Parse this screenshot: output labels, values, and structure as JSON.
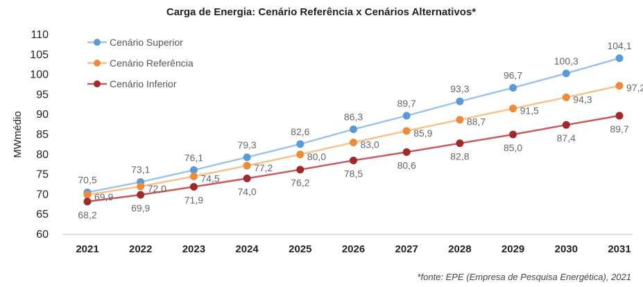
{
  "chart_data": {
    "type": "line",
    "title": "Carga de Energia: Cenário Referência x Cenários Alternativos*",
    "ylabel": "MWmédio",
    "xlabel": "",
    "categories": [
      "2021",
      "2022",
      "2023",
      "2024",
      "2025",
      "2026",
      "2027",
      "2028",
      "2029",
      "2030",
      "2031"
    ],
    "ylim": [
      60,
      110
    ],
    "yticks": [
      60,
      65,
      70,
      75,
      80,
      85,
      90,
      95,
      100,
      105,
      110
    ],
    "grid": false,
    "legend_position": "top-left",
    "series": [
      {
        "name": "Cenário Superior",
        "color": "#9fc3e6",
        "marker_color": "#5b9bd5",
        "values": [
          70.5,
          73.1,
          76.1,
          79.3,
          82.6,
          86.3,
          89.7,
          93.3,
          96.7,
          100.3,
          104.1
        ],
        "labels": [
          "70,5",
          "73,1",
          "76,1",
          "79,3",
          "82,6",
          "86,3",
          "89,7",
          "93,3",
          "96,7",
          "100,3",
          "104,1"
        ],
        "label_position": "above"
      },
      {
        "name": "Cenário Referência",
        "color": "#f8c08a",
        "marker_color": "#ed8b3a",
        "values": [
          69.9,
          72.0,
          74.5,
          77.2,
          80.0,
          83.0,
          85.9,
          88.7,
          91.5,
          94.3,
          97.2
        ],
        "labels": [
          "69,9",
          "72,0",
          "74,5",
          "77,2",
          "80,0",
          "83,0",
          "85,9",
          "88,7",
          "91,5",
          "94,3",
          "97,2"
        ],
        "label_position": "right"
      },
      {
        "name": "Cenário Inferior",
        "color": "#c8585a",
        "marker_color": "#9e2a2b",
        "values": [
          68.2,
          69.9,
          71.9,
          74.0,
          76.2,
          78.5,
          80.6,
          82.8,
          85.0,
          87.4,
          89.7
        ],
        "labels": [
          "68,2",
          "69,9",
          "71,9",
          "74,0",
          "76,2",
          "78,5",
          "80,6",
          "82,8",
          "85,0",
          "87,4",
          "89,7"
        ],
        "label_position": "below"
      }
    ],
    "source_note": "*fonte: EPE (Empresa de Pesquisa Energética), 2021"
  }
}
